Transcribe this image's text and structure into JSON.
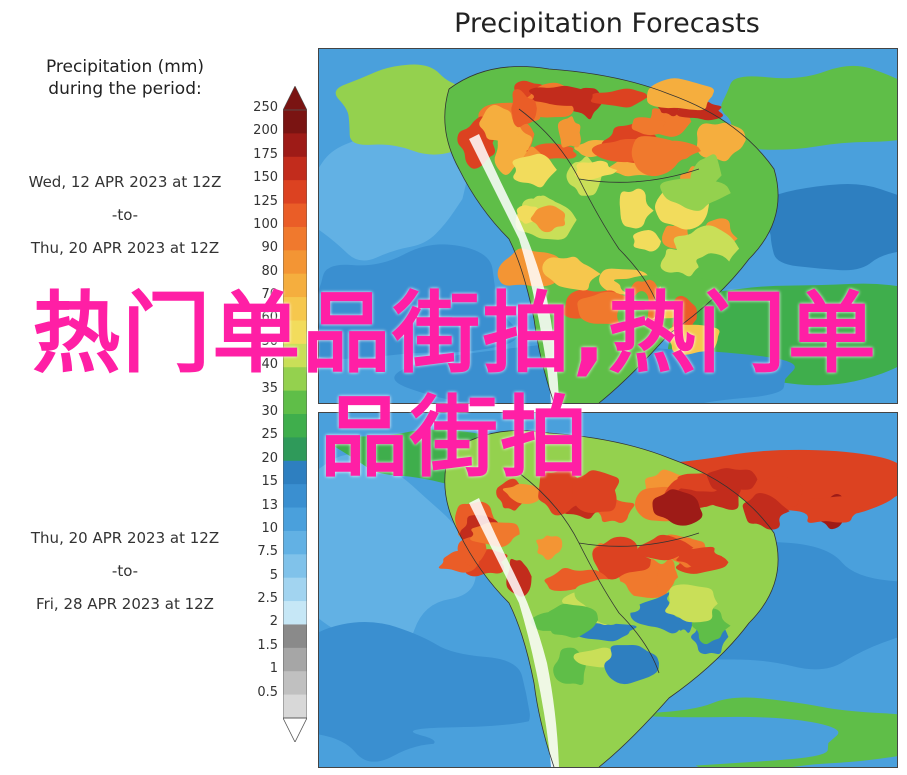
{
  "title": "Precipitation Forecasts",
  "legend": {
    "title_line1": "Precipitation (mm)",
    "title_line2": "during the period:",
    "ticks": [
      "250",
      "200",
      "175",
      "150",
      "125",
      "100",
      "90",
      "80",
      "70",
      "60",
      "50",
      "40",
      "35",
      "30",
      "25",
      "20",
      "15",
      "13",
      "10",
      "7.5",
      "5",
      "2.5",
      "2",
      "1.5",
      "1",
      "0.5"
    ],
    "colors": [
      "#7a1412",
      "#9e1b17",
      "#c22c1c",
      "#dc4221",
      "#ea5d27",
      "#f0792d",
      "#f39534",
      "#f5ae3e",
      "#f6c74d",
      "#f2dc5c",
      "#c9df58",
      "#94d14e",
      "#5fbe48",
      "#3fae4c",
      "#2f9a5a",
      "#2e7fc0",
      "#3a8fd0",
      "#4aa0dc",
      "#62b1e4",
      "#80c2ea",
      "#a2d4f0",
      "#c6e7f6",
      "#8a8a8a",
      "#a6a6a6",
      "#c0c0c0",
      "#d8d8d8"
    ]
  },
  "periods": [
    {
      "start": "Wed, 12 APR 2023 at 12Z",
      "sep": "-to-",
      "end": "Thu, 20 APR 2023 at 12Z"
    },
    {
      "start": "Thu, 20 APR 2023 at 12Z",
      "sep": "-to-",
      "end": "Fri, 28 APR 2023 at 12Z"
    }
  ],
  "watermark": "热门单品街拍,热门单品街拍"
}
